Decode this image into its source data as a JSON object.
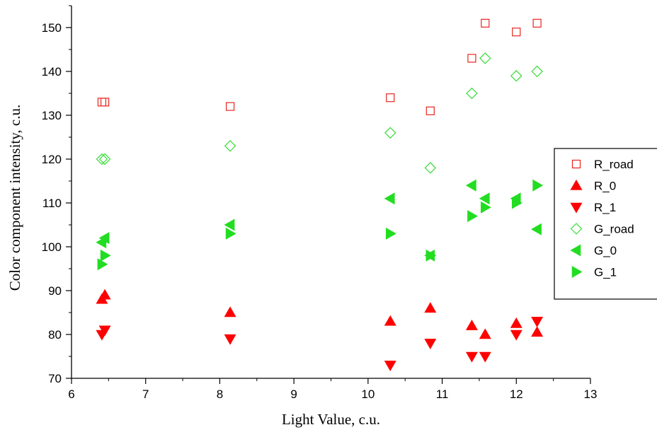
{
  "chart_data": {
    "type": "scatter",
    "title": "",
    "xlabel": "Light Value, c.u.",
    "ylabel": "Color component intensity, c.u.",
    "xlim": [
      6,
      13
    ],
    "ylim": [
      70,
      155
    ],
    "xticks": [
      6,
      7,
      8,
      9,
      10,
      11,
      12,
      13
    ],
    "yticks": [
      70,
      80,
      90,
      100,
      110,
      120,
      130,
      140,
      150
    ],
    "grid": false,
    "legend_position": "right",
    "series": [
      {
        "name": "R_road",
        "marker": "square-open",
        "color": "#e8251f",
        "points": [
          [
            6.41,
            133
          ],
          [
            6.45,
            133
          ],
          [
            8.14,
            132
          ],
          [
            10.3,
            134
          ],
          [
            10.84,
            131
          ],
          [
            11.4,
            143
          ],
          [
            11.58,
            151
          ],
          [
            12.0,
            149
          ],
          [
            12.28,
            151
          ]
        ]
      },
      {
        "name": "R_0",
        "marker": "triangle-up",
        "color": "#ff0000",
        "points": [
          [
            6.41,
            88
          ],
          [
            6.45,
            89
          ],
          [
            8.14,
            85
          ],
          [
            10.3,
            83
          ],
          [
            10.84,
            86
          ],
          [
            11.4,
            82
          ],
          [
            11.58,
            80
          ],
          [
            12.0,
            82.5
          ],
          [
            12.28,
            80.5
          ]
        ]
      },
      {
        "name": "R_1",
        "marker": "triangle-down",
        "color": "#ff0000",
        "points": [
          [
            6.41,
            80
          ],
          [
            6.45,
            81
          ],
          [
            8.14,
            79
          ],
          [
            10.3,
            73
          ],
          [
            10.84,
            78
          ],
          [
            11.4,
            75
          ],
          [
            11.58,
            75
          ],
          [
            12.0,
            80
          ],
          [
            12.28,
            83
          ]
        ]
      },
      {
        "name": "G_road",
        "marker": "diamond-open",
        "color": "#33dd33",
        "points": [
          [
            6.41,
            120
          ],
          [
            6.45,
            120
          ],
          [
            8.14,
            123
          ],
          [
            10.3,
            126
          ],
          [
            10.84,
            118
          ],
          [
            11.4,
            135
          ],
          [
            11.58,
            143
          ],
          [
            12.0,
            139
          ],
          [
            12.28,
            140
          ]
        ]
      },
      {
        "name": "G_0",
        "marker": "triangle-left",
        "color": "#22dd22",
        "points": [
          [
            6.41,
            101
          ],
          [
            6.45,
            102
          ],
          [
            8.14,
            105
          ],
          [
            10.3,
            111
          ],
          [
            10.84,
            98
          ],
          [
            11.4,
            114
          ],
          [
            11.58,
            111
          ],
          [
            12.0,
            111
          ],
          [
            12.28,
            104
          ]
        ]
      },
      {
        "name": "G_1",
        "marker": "triangle-right",
        "color": "#22dd22",
        "points": [
          [
            6.41,
            96
          ],
          [
            6.45,
            98
          ],
          [
            8.14,
            103
          ],
          [
            10.3,
            103
          ],
          [
            10.84,
            98
          ],
          [
            11.4,
            107
          ],
          [
            11.58,
            109
          ],
          [
            12.0,
            110
          ],
          [
            12.28,
            114
          ]
        ]
      }
    ]
  }
}
